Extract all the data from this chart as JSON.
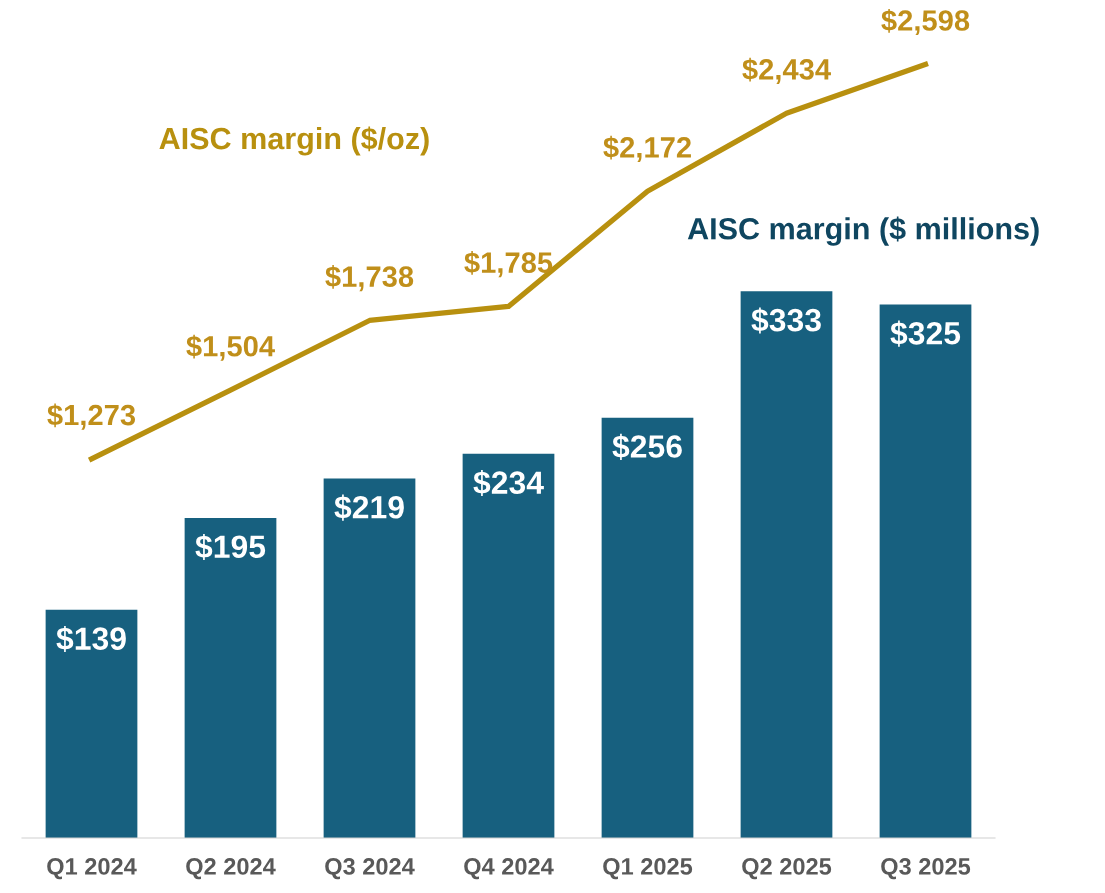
{
  "chart_data": {
    "type": "bar",
    "categories": [
      "Q1 2024",
      "Q2 2024",
      "Q3 2024",
      "Q4 2024",
      "Q1 2025",
      "Q2 2025",
      "Q3 2025"
    ],
    "series": [
      {
        "name": "AISC margin ($ millions)",
        "axis": "y",
        "color": "#17607f",
        "values": [
          139,
          195,
          219,
          234,
          256,
          333,
          325
        ],
        "value_labels": [
          "$139",
          "$195",
          "$219",
          "$234",
          "$256",
          "$333",
          "$325"
        ]
      },
      {
        "name": "AISC margin ($/oz)",
        "type": "line",
        "axis": "y2",
        "color": "#b8900f",
        "values": [
          1273,
          1504,
          1738,
          1785,
          2172,
          2434,
          2598
        ],
        "value_labels": [
          "$1,273",
          "$1,504",
          "$1,738",
          "$1,785",
          "$2,172",
          "$2,434",
          "$2,598"
        ]
      }
    ],
    "tick_labels": "x",
    "grid": false,
    "legend": false,
    "marker": "none",
    "line_style": "solid"
  }
}
